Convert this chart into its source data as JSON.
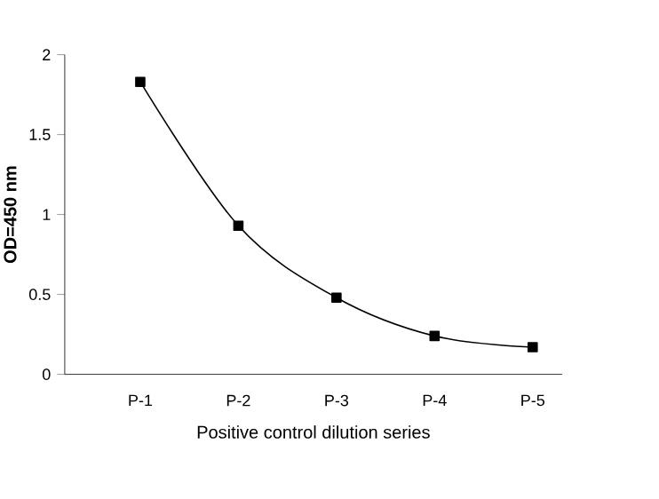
{
  "chart_data": {
    "type": "line",
    "xlabel": "Positive control dilution series",
    "ylabel": "OD=450 nm",
    "categories": [
      "P-1",
      "P-2",
      "P-3",
      "P-4",
      "P-5"
    ],
    "values": [
      1.83,
      0.93,
      0.48,
      0.24,
      0.17
    ],
    "color": "#000000",
    "marker": "square",
    "ylim": [
      0,
      2
    ],
    "yticks": [
      0,
      0.5,
      1,
      1.5,
      2
    ],
    "grid": false
  }
}
